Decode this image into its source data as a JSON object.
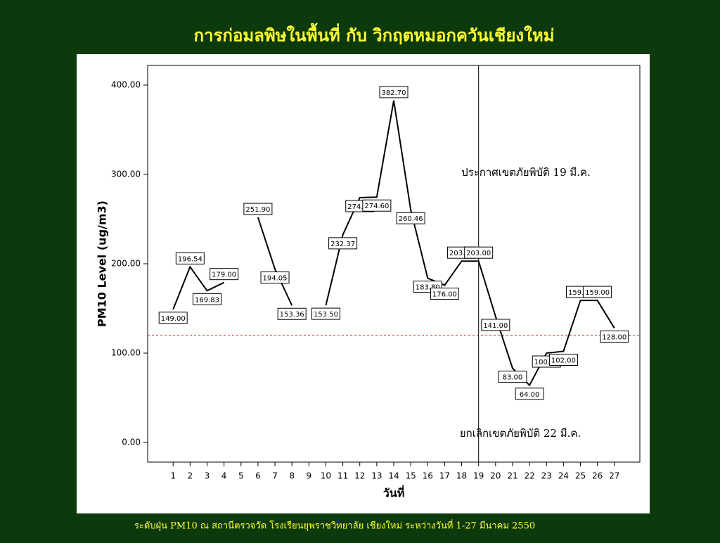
{
  "chart_data": {
    "type": "line",
    "title": "การก่อมลพิษในพื้นที่ กับ วิกฤตหมอกควันเชียงใหม่",
    "caption": "ระดับฝุ่น PM10 ณ สถานีตรวจวัด โรงเรียนยุพราชวิทยาลัย เชียงใหม่ ระหว่างวันที่ 1-27 มีนาคม 2550",
    "ylabel": "PM10 Level (ug/m3)",
    "xlabel": "วันที่",
    "x": [
      1,
      2,
      3,
      4,
      5,
      6,
      7,
      8,
      9,
      10,
      11,
      12,
      13,
      14,
      15,
      16,
      17,
      18,
      19,
      20,
      21,
      22,
      23,
      24,
      25,
      26,
      27
    ],
    "values": [
      149.0,
      196.54,
      169.83,
      179.0,
      null,
      251.9,
      194.05,
      153.36,
      null,
      153.5,
      232.37,
      274.0,
      274.6,
      382.7,
      260.46,
      183.8,
      176.0,
      203.0,
      203.0,
      141.0,
      83.0,
      64.0,
      100.0,
      102.0,
      159.0,
      159.0,
      128.0
    ],
    "value_labels": [
      "149.00",
      "196.54",
      "169.83",
      "179.00",
      null,
      "251.90",
      "194.05",
      "153.36",
      null,
      "153.50",
      "232.37",
      "274.00",
      "274.60",
      "382.70",
      "260.46",
      "183.80",
      "176.00",
      "203.00",
      "203.00",
      "141.00",
      "83.00",
      "64.00",
      "100.00",
      "102.00",
      "159.00",
      "159.00",
      "128.00"
    ],
    "color": "#000000",
    "xlim": [
      -0.5,
      28.5
    ],
    "xticks": [
      1,
      2,
      3,
      4,
      5,
      6,
      7,
      8,
      9,
      10,
      11,
      12,
      13,
      14,
      15,
      16,
      17,
      18,
      19,
      20,
      21,
      22,
      23,
      24,
      25,
      26,
      27
    ],
    "ylim": [
      -22,
      422
    ],
    "yticks": [
      {
        "value": 0,
        "label": "0.00"
      },
      {
        "value": 100,
        "label": "100.00"
      },
      {
        "value": 200,
        "label": "200.00"
      },
      {
        "value": 300,
        "label": "300.00"
      },
      {
        "value": 400,
        "label": "400.00"
      }
    ],
    "hline": {
      "value": 120,
      "color": "#ff4444"
    },
    "vline": {
      "value": 19,
      "color": "#000000"
    },
    "annotations": [
      {
        "text": "ประกาศเขตภัยพิบัติ 19 มี.ค."
      },
      {
        "text": "ยกเลิกเขตภัยพิบัติ 22 มี.ค."
      }
    ]
  }
}
